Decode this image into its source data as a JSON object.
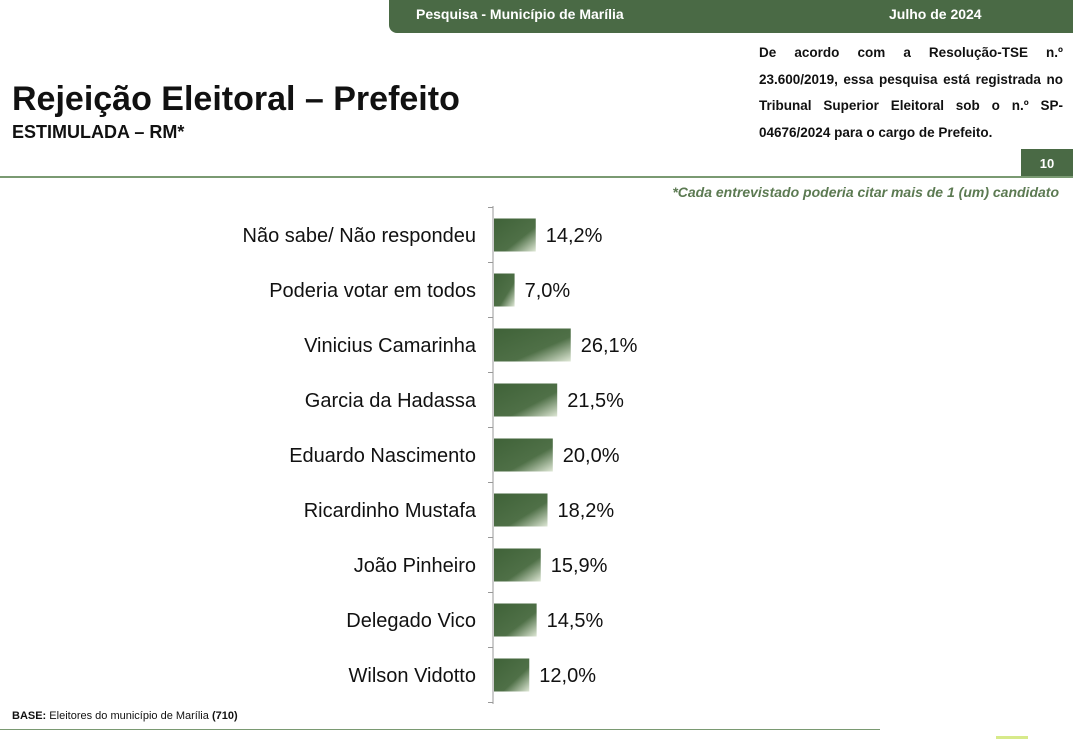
{
  "header": {
    "survey_label": "Pesquisa - Município de Marília",
    "date_label": "Julho de 2024"
  },
  "title": "Rejeição Eleitoral – Prefeito",
  "subtitle": "ESTIMULADA – RM*",
  "legal_text": "De acordo com a Resolução-TSE n.º 23.600/2019, essa pesquisa está registrada no Tribunal Superior Eleitoral sob o n.º SP-04676/2024 para o cargo de Prefeito.",
  "page_number": "10",
  "note": "*Cada entrevistado poderia citar mais de 1 (um) candidato",
  "base": {
    "label": "BASE:",
    "text": "Eleitores do município de Marília",
    "count": "(710)"
  },
  "colors": {
    "bar_dark": "#3f6238",
    "bar_light": "#dfe8d6",
    "brand_green": "#4a6a45",
    "note_green": "#5c7a52"
  },
  "chart_data": {
    "type": "bar",
    "orientation": "horizontal",
    "categories": [
      "Não sabe/ Não respondeu",
      "Poderia votar em todos",
      "Vinicius Camarinha",
      "Garcia da Hadassa",
      "Eduardo Nascimento",
      "Ricardinho Mustafa",
      "João Pinheiro",
      "Delegado Vico",
      "Wilson Vidotto"
    ],
    "values": [
      14.2,
      7.0,
      26.1,
      21.5,
      20.0,
      18.2,
      15.9,
      14.5,
      12.0
    ],
    "data_labels": [
      "14,2%",
      "7,0%",
      "26,1%",
      "21,5%",
      "20,0%",
      "18,2%",
      "15,9%",
      "14,5%",
      "12,0%"
    ],
    "title": "Rejeição Eleitoral – Prefeito",
    "xlabel": "",
    "ylabel": "",
    "grid": false
  }
}
